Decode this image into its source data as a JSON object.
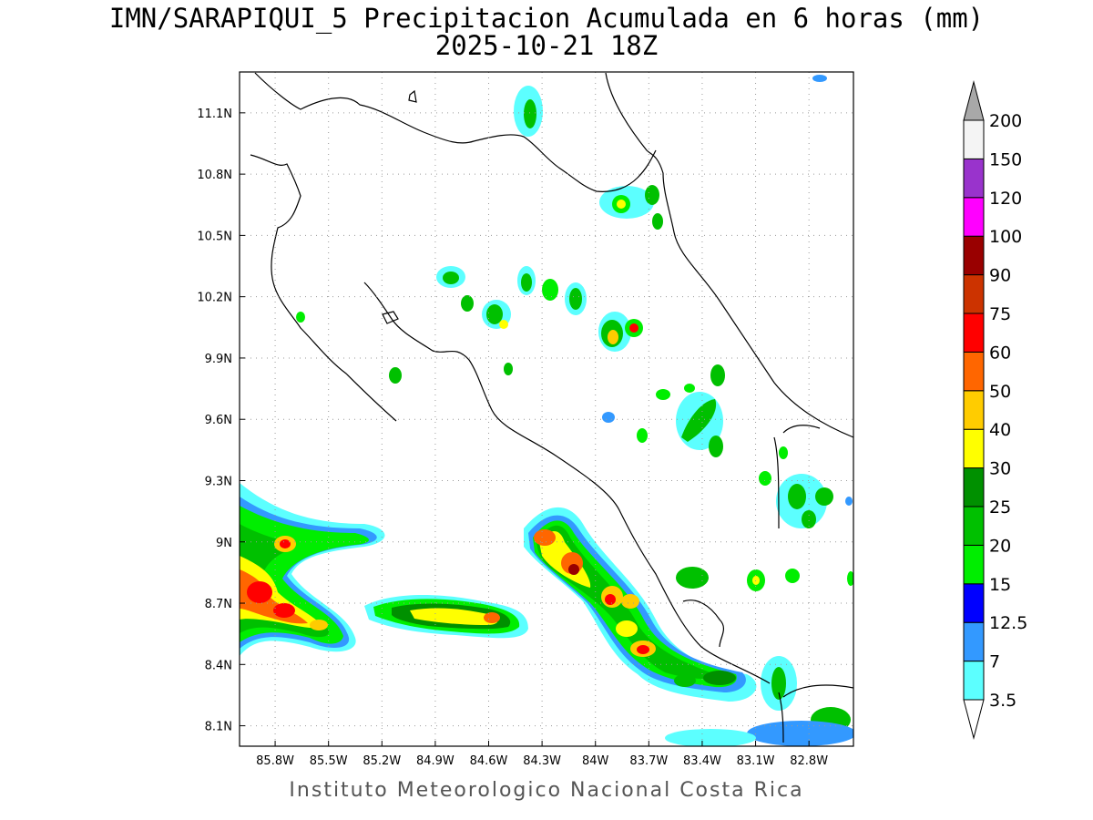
{
  "title_line1": "IMN/SARAPIQUI_5 Precipitacion Acumulada en 6 horas (mm)",
  "title_line2": "2025-10-21 18Z",
  "footer": "Instituto Meteorologico Nacional Costa Rica",
  "map": {
    "lon_range": [
      -86.0,
      -82.55
    ],
    "lat_range": [
      8.0,
      11.3
    ],
    "lon_ticks": [
      "85.8W",
      "85.5W",
      "85.2W",
      "84.9W",
      "84.6W",
      "84.3W",
      "84W",
      "83.7W",
      "83.4W",
      "83.1W",
      "82.8W"
    ],
    "lat_ticks": [
      "11.1N",
      "10.8N",
      "10.5N",
      "10.2N",
      "9.9N",
      "9.6N",
      "9.3N",
      "9N",
      "8.7N",
      "8.4N",
      "8.1N"
    ],
    "gridlines": "dotted"
  },
  "colorbar": {
    "levels": [
      "3.5",
      "7",
      "12.5",
      "15",
      "20",
      "25",
      "30",
      "40",
      "50",
      "60",
      "75",
      "90",
      "100",
      "120",
      "150",
      "200"
    ],
    "colors": [
      "#5cffff",
      "#3399ff",
      "#0000ff",
      "#00ee00",
      "#00c000",
      "#009000",
      "#ffff00",
      "#ffcc00",
      "#ff6600",
      "#ff0000",
      "#cc3300",
      "#990000",
      "#ff00ff",
      "#9933cc",
      "#f4f4f4"
    ],
    "lower_arrow_color": "#ffffff",
    "upper_arrow_color": "#a8a8a8"
  }
}
